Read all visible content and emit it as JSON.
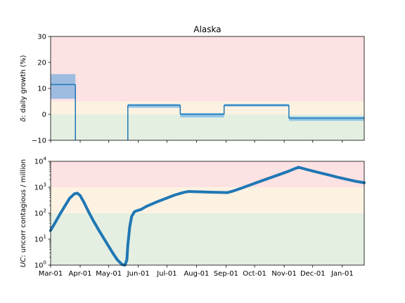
{
  "chart_data": [
    {
      "type": "line",
      "title": "Alaska",
      "ylabel_math": "δ",
      "ylabel_rest": ": daily growth (%)",
      "ylim": [
        -10,
        30
      ],
      "yscale": "linear",
      "yticks": [
        -10,
        0,
        10,
        20,
        30
      ],
      "ytick_labels": [
        "−10",
        "0",
        "10",
        "20",
        "30"
      ],
      "xlim_days": [
        0,
        329
      ],
      "bands": [
        {
          "from": -10,
          "to": 0,
          "color": "#e4efe1"
        },
        {
          "from": 0,
          "to": 5,
          "color": "#fdf2e2"
        },
        {
          "from": 5,
          "to": 30,
          "color": "#fde2e3"
        }
      ],
      "series": [
        {
          "color": "#1f77b4",
          "segments": [
            {
              "x": [
                0,
                26
              ],
              "y": 11.5,
              "lo": 6.0,
              "hi": 15.5,
              "ci_color": "#99b8df"
            },
            {
              "x": [
                81,
                136
              ],
              "y": 3.5,
              "lo": 2.5,
              "hi": 4.0,
              "ci_color": "#8fc3e6"
            },
            {
              "x": [
                136,
                182
              ],
              "y": 0.0,
              "lo": -1.2,
              "hi": 0.5,
              "ci_color": "#8fc3e6"
            },
            {
              "x": [
                182,
                250
              ],
              "y": 3.5,
              "lo": 3.0,
              "hi": 4.0,
              "ci_color": "#8fc3e6"
            },
            {
              "x": [
                250,
                329
              ],
              "y": -1.5,
              "lo": -2.5,
              "hi": -0.8,
              "ci_color": "#8fc3e6"
            }
          ],
          "verticals": [
            {
              "x": 26,
              "y_from": 11.5,
              "y_to": -10
            },
            {
              "x": 81,
              "y_from": -10,
              "y_to": 3.5
            },
            {
              "x": 136,
              "y_from": 3.5,
              "y_to": 0.0
            },
            {
              "x": 182,
              "y_from": 0.0,
              "y_to": 3.5
            },
            {
              "x": 250,
              "y_from": 3.5,
              "y_to": -1.5
            }
          ]
        }
      ]
    },
    {
      "type": "line",
      "ylabel_math": "UC",
      "ylabel_rest": ": uncorr contagious / million",
      "yscale": "log",
      "ylim": [
        1,
        10000
      ],
      "yticks": [
        1,
        10,
        100,
        1000,
        10000
      ],
      "ytick_exponents": [
        "0",
        "1",
        "2",
        "3",
        "4"
      ],
      "ytick_base": "10",
      "xlim_days": [
        0,
        329
      ],
      "xticks_days": [
        0,
        31,
        61,
        92,
        122,
        153,
        184,
        214,
        245,
        275,
        306
      ],
      "xtick_labels": [
        "Mar-01",
        "Apr-01",
        "May-01",
        "Jun-01",
        "Jul-01",
        "Aug-01",
        "Sep-01",
        "Oct-01",
        "Nov-01",
        "Dec-01",
        "Jan-01"
      ],
      "bands": [
        {
          "from": 1,
          "to": 100,
          "color": "#e4efe1"
        },
        {
          "from": 100,
          "to": 1000,
          "color": "#fdf2e2"
        },
        {
          "from": 1000,
          "to": 10000,
          "color": "#fde2e3"
        }
      ],
      "series": [
        {
          "color": "#1f77b4",
          "x": [
            0,
            5,
            10,
            15,
            20,
            25,
            28,
            31,
            35,
            40,
            45,
            50,
            55,
            60,
            65,
            70,
            75,
            78,
            80,
            81,
            83,
            85,
            88,
            92,
            95,
            100,
            110,
            120,
            130,
            140,
            145,
            150,
            160,
            170,
            180,
            185,
            190,
            200,
            210,
            220,
            230,
            240,
            250,
            255,
            260,
            270,
            280,
            290,
            300,
            310,
            320,
            329
          ],
          "y": [
            22,
            45,
            95,
            190,
            380,
            560,
            590,
            480,
            260,
            110,
            50,
            24,
            12,
            6,
            3,
            1.6,
            1.05,
            1.0,
            1.6,
            6,
            30,
            75,
            115,
            130,
            140,
            180,
            260,
            360,
            500,
            640,
            690,
            680,
            660,
            640,
            630,
            620,
            690,
            920,
            1250,
            1700,
            2300,
            3100,
            4200,
            5000,
            5900,
            4700,
            3800,
            3100,
            2500,
            2050,
            1700,
            1500
          ]
        }
      ]
    }
  ]
}
